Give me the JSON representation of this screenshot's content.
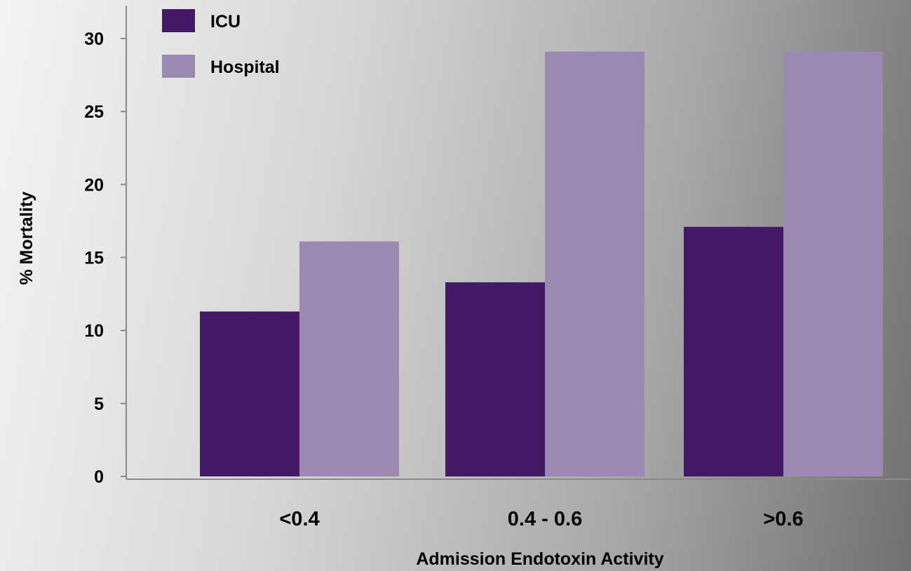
{
  "chart_data": {
    "type": "bar",
    "title": "",
    "xlabel": "Admission Endotoxin Activity",
    "ylabel": "% Mortality",
    "categories": [
      "<0.4",
      "0.4 - 0.6",
      ">0.6"
    ],
    "series": [
      {
        "name": "ICU",
        "values": [
          11.3,
          13.3,
          17.1
        ],
        "color": "#441a67"
      },
      {
        "name": "Hospital",
        "values": [
          16.1,
          29.1,
          29.1
        ],
        "color": "#9b89b3"
      }
    ],
    "ylim": [
      0,
      30
    ],
    "yticks": [
      "0",
      "5",
      "10",
      "15",
      "20",
      "25",
      "30"
    ],
    "grid": false,
    "legend_position": "top-left"
  }
}
